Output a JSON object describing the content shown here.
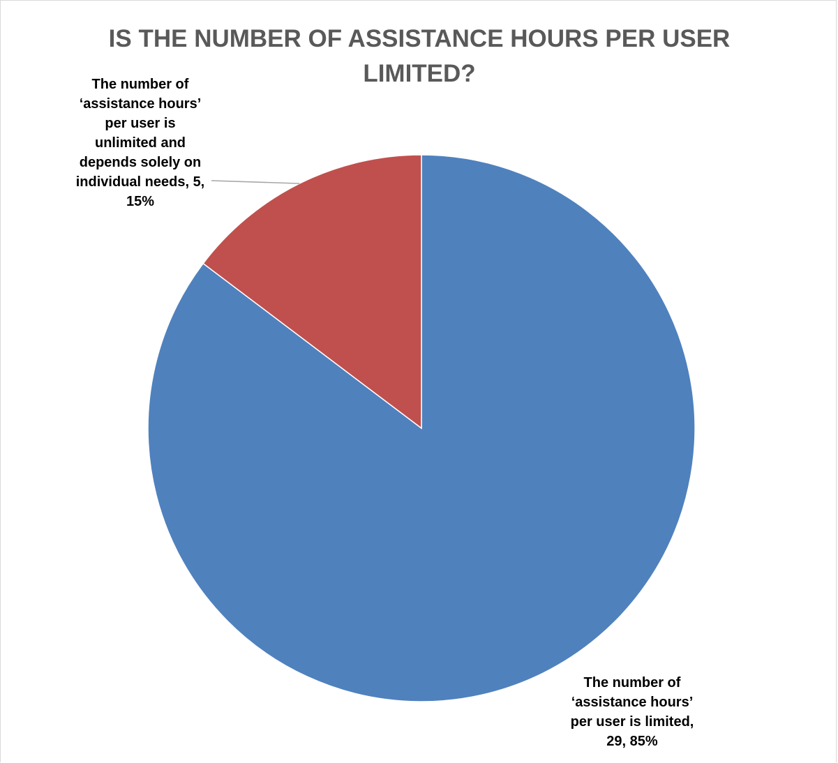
{
  "chart_data": {
    "type": "pie",
    "title": "IS THE NUMBER OF ASSISTANCE HOURS PER USER LIMITED?",
    "slices": [
      {
        "label": "The number of ‘assistance hours’ per user is limited",
        "value": 29,
        "percent": 85,
        "color": "#4f81bd",
        "data_label": "The number of\n‘assistance hours’\nper user is limited,\n29, 85%"
      },
      {
        "label": "The number of ‘assistance hours’ per user is unlimited and depends solely on individual needs",
        "value": 5,
        "percent": 15,
        "color": "#c0504d",
        "data_label": "The number of\n‘assistance hours’\nper user is\nunlimited and\ndepends solely on\nindividual needs, 5,\n15%"
      }
    ],
    "start_angle": "12 o'clock",
    "direction": "clockwise",
    "legend": "none",
    "leader_line_color": "#a6a6a6"
  }
}
